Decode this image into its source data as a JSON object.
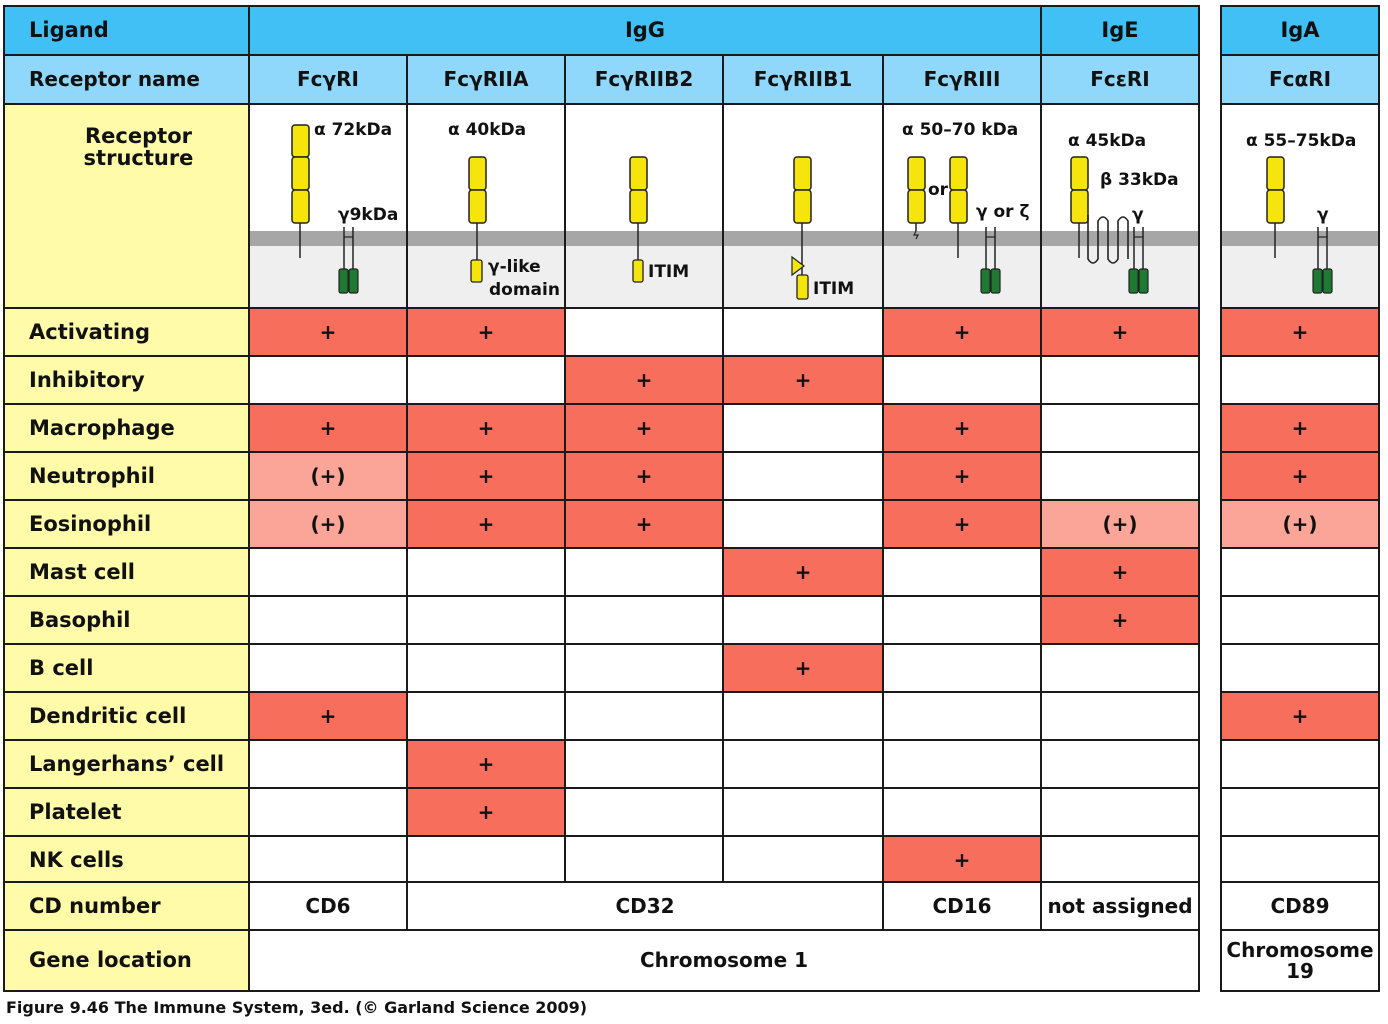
{
  "ligand_row": {
    "label": "Ligand",
    "igg": "IgG",
    "ige": "IgE",
    "iga": "IgA"
  },
  "receptor_name_row": {
    "label": "Receptor name",
    "names": [
      "FcγRI",
      "FcγRIIA",
      "FcγRIIB2",
      "FcγRIIB1",
      "FcγRIII",
      "FcεRI",
      "FcαRI"
    ]
  },
  "structure_row": {
    "label": "Receptor structure",
    "fcgri": {
      "alpha": "α 72kDa",
      "gamma": "γ9kDa"
    },
    "fcgriia": {
      "alpha": "α 40kDa",
      "domain_line1": "γ-like",
      "domain_line2": "domain"
    },
    "fcgriib2": {
      "motif": "ITIM"
    },
    "fcgriib1": {
      "motif": "ITIM"
    },
    "fcgriii": {
      "alpha": "α  50–70 kDa",
      "or": "or",
      "gamma_zeta": "γ or ζ"
    },
    "fceri": {
      "alpha": "α 45kDa",
      "beta": "β 33kDa",
      "gamma": "γ"
    },
    "fcari": {
      "alpha": "α 55–75kDa",
      "gamma": "γ"
    }
  },
  "rows": [
    {
      "label": "Activating",
      "cells": [
        "+",
        "+",
        "",
        "",
        "+",
        "+",
        "+"
      ],
      "shade": [
        "red",
        "red",
        "white",
        "white",
        "red",
        "red",
        "red"
      ]
    },
    {
      "label": "Inhibitory",
      "cells": [
        "",
        "",
        "+",
        "+",
        "",
        "",
        ""
      ],
      "shade": [
        "white",
        "white",
        "red",
        "red",
        "white",
        "white",
        "white"
      ]
    },
    {
      "label": "Macrophage",
      "cells": [
        "+",
        "+",
        "+",
        "",
        "+",
        "",
        "+"
      ],
      "shade": [
        "red",
        "red",
        "red",
        "white",
        "red",
        "white",
        "red"
      ]
    },
    {
      "label": "Neutrophil",
      "cells": [
        "(+)",
        "+",
        "+",
        "",
        "+",
        "",
        "+"
      ],
      "shade": [
        "pink",
        "red",
        "red",
        "white",
        "red",
        "white",
        "red"
      ]
    },
    {
      "label": "Eosinophil",
      "cells": [
        "(+)",
        "+",
        "+",
        "",
        "+",
        "(+)",
        "(+)"
      ],
      "shade": [
        "pink",
        "red",
        "red",
        "white",
        "red",
        "pink",
        "pink"
      ]
    },
    {
      "label": "Mast cell",
      "cells": [
        "",
        "",
        "",
        "+",
        "",
        "+",
        ""
      ],
      "shade": [
        "white",
        "white",
        "white",
        "red",
        "white",
        "red",
        "white"
      ]
    },
    {
      "label": "Basophil",
      "cells": [
        "",
        "",
        "",
        "",
        "",
        "+",
        ""
      ],
      "shade": [
        "white",
        "white",
        "white",
        "white",
        "white",
        "red",
        "white"
      ]
    },
    {
      "label": "B cell",
      "cells": [
        "",
        "",
        "",
        "+",
        "",
        "",
        ""
      ],
      "shade": [
        "white",
        "white",
        "white",
        "red",
        "white",
        "white",
        "white"
      ]
    },
    {
      "label": "Dendritic cell",
      "cells": [
        "+",
        "",
        "",
        "",
        "",
        "",
        "+"
      ],
      "shade": [
        "red",
        "white",
        "white",
        "white",
        "white",
        "white",
        "red"
      ]
    },
    {
      "label": "Langerhans’ cell",
      "cells": [
        "",
        "+",
        "",
        "",
        "",
        "",
        ""
      ],
      "shade": [
        "white",
        "red",
        "white",
        "white",
        "white",
        "white",
        "white"
      ]
    },
    {
      "label": "Platelet",
      "cells": [
        "",
        "+",
        "",
        "",
        "",
        "",
        ""
      ],
      "shade": [
        "white",
        "red",
        "white",
        "white",
        "white",
        "white",
        "white"
      ]
    },
    {
      "label": "NK cells",
      "cells": [
        "",
        "",
        "",
        "",
        "+",
        "",
        ""
      ],
      "shade": [
        "white",
        "white",
        "white",
        "white",
        "red",
        "white",
        "white"
      ]
    }
  ],
  "cd_row": {
    "label": "CD number",
    "fcgri": "CD6",
    "fcgrii": "CD32",
    "fcgriii": "CD16",
    "fceri": "not assigned",
    "fcari": "CD89"
  },
  "gene_row": {
    "label": "Gene location",
    "igg_ige": "Chromosome 1",
    "iga_line1": "Chromosome",
    "iga_line2": "19"
  },
  "caption": "Figure 9.46  The Immune System, 3ed. (© Garland Science 2009)",
  "colors": {
    "header_blue": "#40c0f4",
    "subheader_blue": "#8fd8fb",
    "label_yellow": "#fffba8",
    "strong": "#f86e5c",
    "weak": "#fba598",
    "domain_yellow": "#f5e50c",
    "gamma_green": "#1e7a32",
    "membrane_gray": "#a6a6a6"
  }
}
